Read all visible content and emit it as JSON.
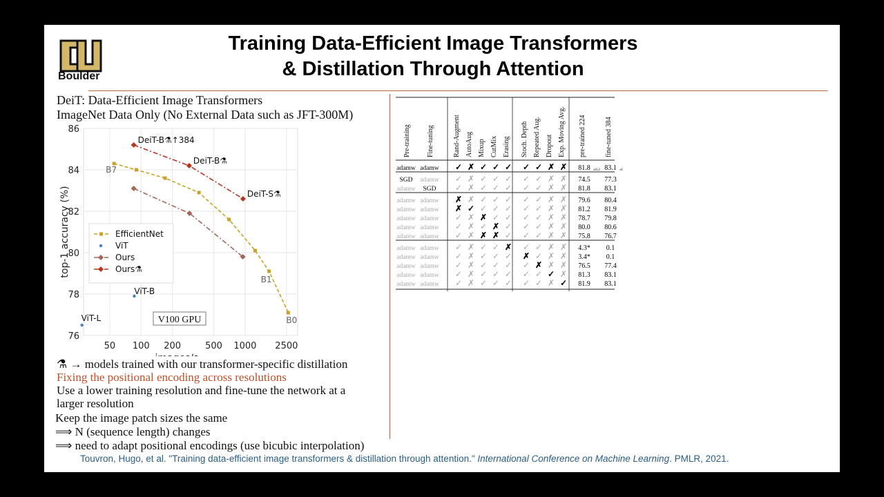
{
  "slide": {
    "logo_text": "Boulder",
    "title_line1": "Training Data-Efficient Image Transformers",
    "title_line2": "& Distillation Through Attention",
    "subtitle1": "DeiT: Data-Efficient Image Transformers",
    "subtitle2": "ImageNet Data Only (No External Data such as JFT-300M)",
    "notes": {
      "distill": "⚗ → models trained with our transformer-specific distillation",
      "fix": "Fixing the positional encoding across resolutions",
      "lower1": "Use a lower training resolution and fine-tune the network at a",
      "lower2": "larger resolution",
      "patch": "Keep the image patch sizes the same",
      "seq": "⟹  N (sequence length) changes",
      "adapt": "⟹  need to adapt positional encodings (use bicubic interpolation)"
    },
    "citation_pre": "Touvron, Hugo, et al. \"Training data-efficient image transformers & distillation through attention.\" ",
    "citation_venue": "International Conference on Machine Learning",
    "citation_post": ". PMLR, 2021.",
    "colors": {
      "accent_rule": "#c0643a",
      "fix_text": "#c0502a",
      "citation": "#2a5d8a"
    }
  },
  "chart_data": {
    "type": "line",
    "xlabel": "images/s",
    "ylabel": "top-1 accuracy (%)",
    "x_scale": "log",
    "xlim": [
      28,
      3200
    ],
    "ylim": [
      76,
      86
    ],
    "x_ticks": [
      50,
      100,
      200,
      500,
      1000,
      2500
    ],
    "y_ticks": [
      76,
      78,
      80,
      82,
      84,
      86
    ],
    "grid": true,
    "legend_position": "center-left",
    "annotation_box": "V100 GPU",
    "series": [
      {
        "name": "EfficientNet",
        "color": "#c9a227",
        "style": "dashed",
        "marker": "square",
        "x": [
          55,
          90,
          170,
          360,
          700,
          1250,
          1700,
          2600
        ],
        "y": [
          84.3,
          84.0,
          83.6,
          82.9,
          81.6,
          80.1,
          79.1,
          77.1
        ],
        "point_labels": [
          "B7",
          "",
          "",
          "",
          "",
          "",
          "B1",
          "B0"
        ]
      },
      {
        "name": "ViT",
        "color": "#4a7fc1",
        "style": "none",
        "marker": "circle",
        "x": [
          86,
          27
        ],
        "y": [
          77.9,
          76.5
        ],
        "point_labels": [
          "ViT-B",
          "ViT-L"
        ]
      },
      {
        "name": "Ours",
        "color": "#a0675a",
        "style": "dashdot",
        "marker": "diamond",
        "x": [
          85,
          292,
          950
        ],
        "y": [
          83.1,
          81.9,
          79.8
        ],
        "point_labels": [
          "",
          "",
          ""
        ]
      },
      {
        "name": "Ours⚗",
        "color": "#b5361f",
        "style": "dashdot",
        "marker": "diamond",
        "x": [
          85,
          290,
          955
        ],
        "y": [
          85.2,
          84.2,
          82.6
        ],
        "point_labels": [
          "DeiT-B⚗↑384",
          "DeiT-B⚗",
          "DeiT-S⚗"
        ]
      }
    ]
  },
  "table": {
    "headers": [
      "Pre-training",
      "Fine-tuning",
      "Rand-Augment",
      "AutoAug",
      "Mixup",
      "CutMix",
      "Erasing",
      "Stoch. Depth",
      "Repeated Aug.",
      "Dropout",
      "Exp. Moving Avg.",
      "pre-trained 224",
      "fine-tuned 384"
    ],
    "groups": [
      {
        "rows": [
          {
            "cells": [
              "adamw",
              "adamw",
              "✓",
              "✗",
              "✓",
              "✓",
              "✓",
              "✓",
              "✓",
              "✗",
              "✗",
              "81.8±0.2",
              "83.1±0.1"
            ],
            "bold_from": 0
          }
        ]
      },
      {
        "rows": [
          {
            "cells": [
              "SGD",
              "adamw",
              "✓",
              "✗",
              "✓",
              "✓",
              "✓",
              "✓",
              "✓",
              "✗",
              "✗",
              "74.5",
              "77.3"
            ],
            "dark": [
              0,
              11,
              12
            ]
          },
          {
            "cells": [
              "adamw",
              "SGD",
              "✓",
              "✗",
              "✓",
              "✓",
              "✓",
              "✓",
              "✓",
              "✗",
              "✗",
              "81.8",
              "83.1"
            ],
            "dark": [
              1,
              11,
              12
            ]
          }
        ]
      },
      {
        "rows": [
          {
            "cells": [
              "adamw",
              "adamw",
              "✗",
              "✗",
              "✓",
              "✓",
              "✓",
              "✓",
              "✓",
              "✗",
              "✗",
              "79.6",
              "80.4"
            ],
            "dark": [
              2,
              11,
              12
            ]
          },
          {
            "cells": [
              "adamw",
              "adamw",
              "✗",
              "✓",
              "✓",
              "✓",
              "✓",
              "✓",
              "✓",
              "✗",
              "✗",
              "81.2",
              "81.9"
            ],
            "dark": [
              2,
              3,
              11,
              12
            ]
          },
          {
            "cells": [
              "adamw",
              "adamw",
              "✓",
              "✗",
              "✗",
              "✓",
              "✓",
              "✓",
              "✓",
              "✗",
              "✗",
              "78.7",
              "79.8"
            ],
            "dark": [
              4,
              11,
              12
            ]
          },
          {
            "cells": [
              "adamw",
              "adamw",
              "✓",
              "✗",
              "✓",
              "✗",
              "✓",
              "✓",
              "✓",
              "✗",
              "✗",
              "80.0",
              "80.6"
            ],
            "dark": [
              5,
              11,
              12
            ]
          },
          {
            "cells": [
              "adamw",
              "adamw",
              "✓",
              "✗",
              "✗",
              "✗",
              "✓",
              "✓",
              "✓",
              "✗",
              "✗",
              "75.8",
              "76.7"
            ],
            "dark": [
              4,
              5,
              11,
              12
            ]
          }
        ]
      },
      {
        "rows": [
          {
            "cells": [
              "adamw",
              "adamw",
              "✓",
              "✗",
              "✓",
              "✓",
              "✗",
              "✓",
              "✓",
              "✗",
              "✗",
              "4.3*",
              "0.1"
            ],
            "dark": [
              6,
              11,
              12
            ]
          },
          {
            "cells": [
              "adamw",
              "adamw",
              "✓",
              "✗",
              "✓",
              "✓",
              "✓",
              "✗",
              "✓",
              "✗",
              "✗",
              "3.4*",
              "0.1"
            ],
            "dark": [
              7,
              11,
              12
            ]
          },
          {
            "cells": [
              "adamw",
              "adamw",
              "✓",
              "✗",
              "✓",
              "✓",
              "✓",
              "✓",
              "✗",
              "✗",
              "✗",
              "76.5",
              "77.4"
            ],
            "dark": [
              8,
              11,
              12
            ]
          },
          {
            "cells": [
              "adamw",
              "adamw",
              "✓",
              "✗",
              "✓",
              "✓",
              "✓",
              "✓",
              "✓",
              "✓",
              "✗",
              "81.3",
              "83.1"
            ],
            "dark": [
              9,
              11,
              12
            ]
          },
          {
            "cells": [
              "adamw",
              "adamw",
              "✓",
              "✗",
              "✓",
              "✓",
              "✓",
              "✓",
              "✓",
              "✗",
              "✓",
              "81.9",
              "83.1"
            ],
            "dark": [
              10,
              11,
              12
            ]
          }
        ]
      }
    ]
  }
}
